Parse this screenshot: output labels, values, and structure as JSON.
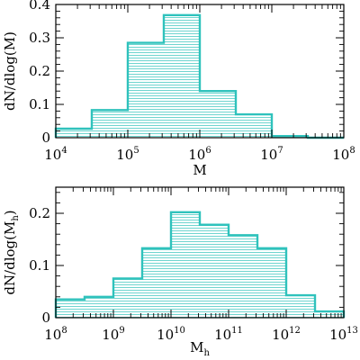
{
  "colors": {
    "histogram": "#2fc2bc",
    "hatch": "#5fd0ca",
    "axes": "#000000"
  },
  "chart_data": [
    {
      "type": "histogram",
      "xscale": "log",
      "xlim_log10": [
        4,
        8
      ],
      "ylim": [
        0,
        0.4
      ],
      "xlabel": "M",
      "ylabel": "dN/dlog(M)",
      "x_ticks": [
        {
          "base": "10",
          "exp": "4"
        },
        {
          "base": "10",
          "exp": "5"
        },
        {
          "base": "10",
          "exp": "6"
        },
        {
          "base": "10",
          "exp": "7"
        },
        {
          "base": "10",
          "exp": "8"
        }
      ],
      "y_ticks": [
        "0",
        "0.1",
        "0.2",
        "0.3",
        "0.4"
      ],
      "bin_edges_log10": [
        4,
        4.5,
        5,
        5.5,
        6,
        6.5,
        7,
        7.5,
        8
      ],
      "values": [
        0.027,
        0.083,
        0.285,
        0.368,
        0.14,
        0.07,
        0.005,
        0.0
      ],
      "fill": "horizontal hatch"
    },
    {
      "type": "histogram",
      "xscale": "log",
      "xlim_log10": [
        8,
        13
      ],
      "ylim": [
        0,
        0.25
      ],
      "xlabel": "M",
      "xlabel_sub": "h",
      "ylabel": "dN/dlog(M",
      "ylabel_sub": "h",
      "ylabel_end": ")",
      "x_ticks": [
        {
          "base": "10",
          "exp": "8"
        },
        {
          "base": "10",
          "exp": "9"
        },
        {
          "base": "10",
          "exp": "10"
        },
        {
          "base": "10",
          "exp": "11"
        },
        {
          "base": "10",
          "exp": "12"
        },
        {
          "base": "10",
          "exp": "13"
        }
      ],
      "y_ticks": [
        "0",
        "0.1",
        "0.2"
      ],
      "bin_edges_log10": [
        8,
        8.5,
        9,
        9.5,
        10,
        10.5,
        11,
        11.5,
        12,
        12.5,
        13
      ],
      "values": [
        0.035,
        0.04,
        0.075,
        0.133,
        0.202,
        0.178,
        0.158,
        0.133,
        0.043,
        0.012
      ],
      "fill": "horizontal hatch"
    }
  ]
}
